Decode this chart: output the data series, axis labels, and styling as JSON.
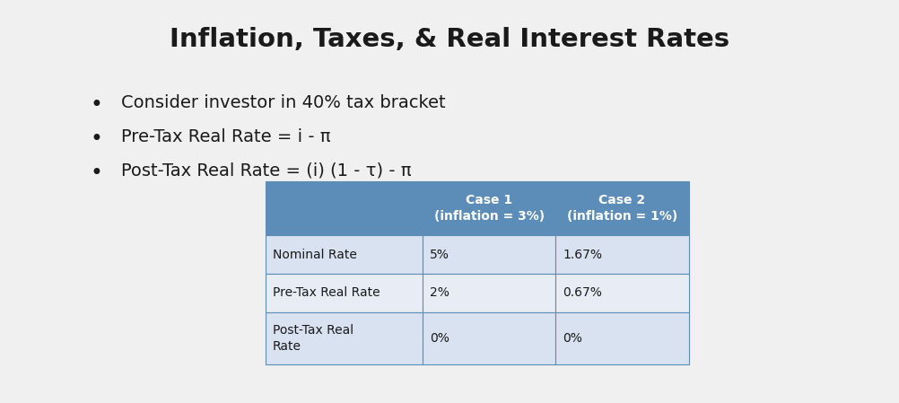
{
  "title": "Inflation, Taxes, & Real Interest Rates",
  "title_fontsize": 21,
  "bullet_points": [
    "Consider investor in 40% tax bracket",
    "Pre-Tax Real Rate = i - π",
    "Post-Tax Real Rate = (i) (1 - τ) - π"
  ],
  "bullet_fontsize": 14,
  "table_header_bg": "#5b8db8",
  "table_row_bg_1": "#d9e2f0",
  "table_row_bg_2": "#e8edf5",
  "table_border_color": "#5b8db8",
  "header_text_color": "#ffffff",
  "header_labels": [
    "",
    "Case 1\n(inflation = 3%)",
    "Case 2\n(inflation = 1%)"
  ],
  "row_labels": [
    "Nominal Rate",
    "Pre-Tax Real Rate",
    "Post-Tax Real\nRate"
  ],
  "col1_values": [
    "5%",
    "2%",
    "0%"
  ],
  "col2_values": [
    "1.67%",
    "0.67%",
    "0%"
  ],
  "bg_color": "#f0f0f0",
  "figw": 10.02,
  "figh": 4.49
}
